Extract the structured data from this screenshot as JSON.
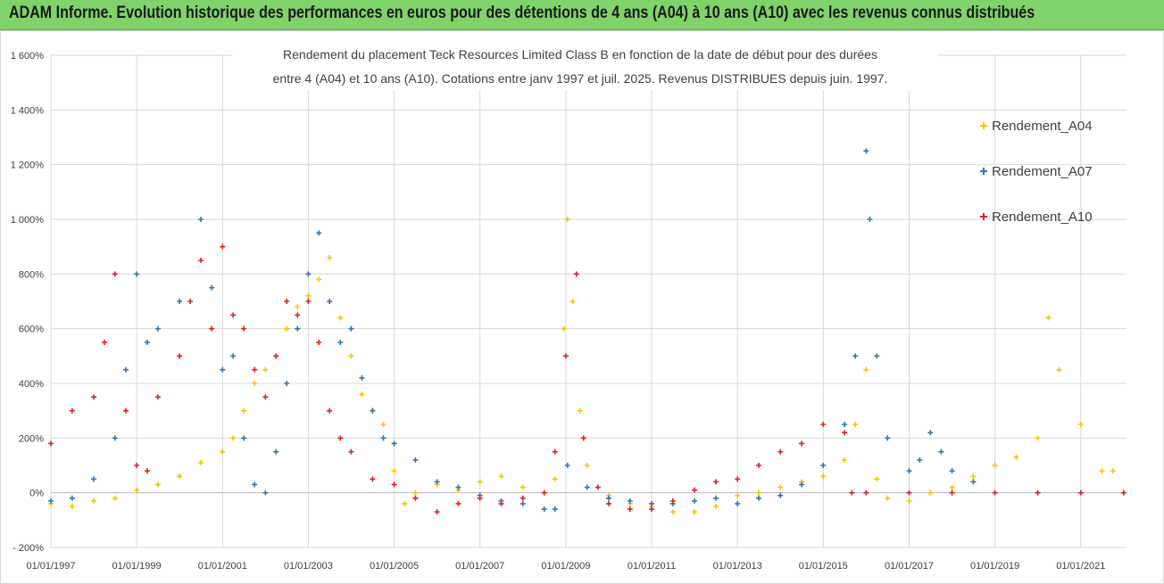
{
  "banner": {
    "title": "ADAM Informe. Evolution historique des performances en euros pour des détentions de 4 ans (A04) à 10 ans (A10) avec les revenus connus distribués",
    "background": "#7fd36a"
  },
  "chart_data": {
    "type": "scatter",
    "title_line1": "Rendement du placement Teck Resources Limited Class B en fonction de la date de début pour des durées",
    "title_line2": "entre 4 (A04) et 10 ans (A10).  Cotations entre janv 1997 et juil. 2025. Revenus DISTRIBUES depuis juin. 1997.",
    "xlabel": "",
    "ylabel": "",
    "x_range": [
      "1997-01-01",
      "2022-01-25"
    ],
    "ylim": [
      -200,
      1600
    ],
    "y_unit": "%",
    "y_ticks": [
      "- 200%",
      "0%",
      "200%",
      "400%",
      "600%",
      "800%",
      "1 000%",
      "1 200%",
      "1 400%",
      "1 600%"
    ],
    "x_ticks": [
      "01/01/1997",
      "01/01/1999",
      "01/01/2001",
      "01/01/2003",
      "01/01/2005",
      "01/01/2007",
      "01/01/2009",
      "01/01/2011",
      "01/01/2013",
      "01/01/2015",
      "01/01/2017",
      "01/01/2019",
      "01/01/2021"
    ],
    "grid": "horizontal and vertical",
    "marker": "plus",
    "legend_position": "right",
    "series": [
      {
        "name": "Rendement_A04",
        "color": "#ffc000",
        "points": [
          [
            "1997-01-01",
            -40
          ],
          [
            "1997-07-01",
            -50
          ],
          [
            "1998-01-01",
            -30
          ],
          [
            "1998-07-01",
            -20
          ],
          [
            "1999-01-01",
            10
          ],
          [
            "1999-07-01",
            30
          ],
          [
            "2000-01-01",
            60
          ],
          [
            "2000-07-01",
            110
          ],
          [
            "2001-01-01",
            150
          ],
          [
            "2001-04-01",
            200
          ],
          [
            "2001-07-01",
            300
          ],
          [
            "2001-10-01",
            400
          ],
          [
            "2002-01-01",
            450
          ],
          [
            "2002-04-01",
            500
          ],
          [
            "2002-07-01",
            600
          ],
          [
            "2002-10-01",
            680
          ],
          [
            "2003-01-01",
            720
          ],
          [
            "2003-04-01",
            780
          ],
          [
            "2003-07-01",
            860
          ],
          [
            "2003-10-01",
            640
          ],
          [
            "2004-01-01",
            500
          ],
          [
            "2004-04-01",
            360
          ],
          [
            "2004-07-01",
            300
          ],
          [
            "2004-10-01",
            250
          ],
          [
            "2005-01-01",
            80
          ],
          [
            "2005-04-01",
            -40
          ],
          [
            "2005-07-01",
            0
          ],
          [
            "2006-01-01",
            30
          ],
          [
            "2006-07-01",
            10
          ],
          [
            "2007-01-01",
            40
          ],
          [
            "2007-07-01",
            60
          ],
          [
            "2008-01-01",
            20
          ],
          [
            "2008-07-01",
            0
          ],
          [
            "2008-10-01",
            50
          ],
          [
            "2008-12-15",
            600
          ],
          [
            "2009-01-15",
            1000
          ],
          [
            "2009-03-01",
            700
          ],
          [
            "2009-05-01",
            300
          ],
          [
            "2009-07-01",
            100
          ],
          [
            "2010-01-01",
            -10
          ],
          [
            "2010-07-01",
            -40
          ],
          [
            "2011-01-01",
            -50
          ],
          [
            "2011-07-01",
            -70
          ],
          [
            "2012-01-01",
            -70
          ],
          [
            "2012-07-01",
            -50
          ],
          [
            "2013-01-01",
            -10
          ],
          [
            "2013-07-01",
            0
          ],
          [
            "2014-01-01",
            20
          ],
          [
            "2014-07-01",
            40
          ],
          [
            "2015-01-01",
            60
          ],
          [
            "2015-07-01",
            120
          ],
          [
            "2015-10-01",
            250
          ],
          [
            "2016-01-01",
            450
          ],
          [
            "2016-04-01",
            50
          ],
          [
            "2016-07-01",
            -20
          ],
          [
            "2017-01-01",
            -30
          ],
          [
            "2017-07-01",
            0
          ],
          [
            "2018-01-01",
            20
          ],
          [
            "2018-07-01",
            60
          ],
          [
            "2019-01-01",
            100
          ],
          [
            "2019-07-01",
            130
          ],
          [
            "2020-01-01",
            200
          ],
          [
            "2020-04-01",
            640
          ],
          [
            "2020-07-01",
            450
          ],
          [
            "2021-01-01",
            250
          ],
          [
            "2021-07-01",
            80
          ],
          [
            "2021-10-01",
            80
          ]
        ]
      },
      {
        "name": "Rendement_A07",
        "color": "#2e75b6",
        "points": [
          [
            "1997-01-01",
            -30
          ],
          [
            "1997-07-01",
            -20
          ],
          [
            "1998-01-01",
            50
          ],
          [
            "1998-07-01",
            200
          ],
          [
            "1998-10-01",
            450
          ],
          [
            "1999-01-01",
            800
          ],
          [
            "1999-04-01",
            550
          ],
          [
            "1999-07-01",
            600
          ],
          [
            "2000-01-01",
            700
          ],
          [
            "2000-07-01",
            1000
          ],
          [
            "2000-10-01",
            750
          ],
          [
            "2001-01-01",
            450
          ],
          [
            "2001-04-01",
            500
          ],
          [
            "2001-07-01",
            200
          ],
          [
            "2001-10-01",
            30
          ],
          [
            "2002-01-01",
            0
          ],
          [
            "2002-04-01",
            150
          ],
          [
            "2002-07-01",
            400
          ],
          [
            "2002-10-01",
            600
          ],
          [
            "2003-01-01",
            800
          ],
          [
            "2003-04-01",
            950
          ],
          [
            "2003-07-01",
            700
          ],
          [
            "2003-10-01",
            550
          ],
          [
            "2004-01-01",
            600
          ],
          [
            "2004-04-01",
            420
          ],
          [
            "2004-07-01",
            300
          ],
          [
            "2004-10-01",
            200
          ],
          [
            "2005-01-01",
            180
          ],
          [
            "2005-07-01",
            120
          ],
          [
            "2006-01-01",
            40
          ],
          [
            "2006-07-01",
            20
          ],
          [
            "2007-01-01",
            -10
          ],
          [
            "2007-07-01",
            -30
          ],
          [
            "2008-01-01",
            -40
          ],
          [
            "2008-07-01",
            -60
          ],
          [
            "2008-10-01",
            -60
          ],
          [
            "2009-01-15",
            100
          ],
          [
            "2009-07-01",
            20
          ],
          [
            "2010-01-01",
            -20
          ],
          [
            "2010-07-01",
            -30
          ],
          [
            "2011-01-01",
            -40
          ],
          [
            "2011-07-01",
            -40
          ],
          [
            "2012-01-01",
            -30
          ],
          [
            "2012-07-01",
            -20
          ],
          [
            "2013-01-01",
            -40
          ],
          [
            "2013-07-01",
            -20
          ],
          [
            "2014-01-01",
            -10
          ],
          [
            "2014-07-01",
            30
          ],
          [
            "2015-01-01",
            100
          ],
          [
            "2015-07-01",
            250
          ],
          [
            "2015-10-01",
            500
          ],
          [
            "2016-01-01",
            1250
          ],
          [
            "2016-02-01",
            1000
          ],
          [
            "2016-04-01",
            500
          ],
          [
            "2016-07-01",
            200
          ],
          [
            "2017-01-01",
            80
          ],
          [
            "2017-04-01",
            120
          ],
          [
            "2017-07-01",
            220
          ],
          [
            "2017-10-01",
            150
          ],
          [
            "2018-01-01",
            80
          ],
          [
            "2018-07-01",
            40
          ]
        ]
      },
      {
        "name": "Rendement_A10",
        "color": "#e02020",
        "points": [
          [
            "1997-01-01",
            180
          ],
          [
            "1997-07-01",
            300
          ],
          [
            "1998-01-01",
            350
          ],
          [
            "1998-04-01",
            550
          ],
          [
            "1998-07-01",
            800
          ],
          [
            "1998-10-01",
            300
          ],
          [
            "1999-01-01",
            100
          ],
          [
            "1999-04-01",
            80
          ],
          [
            "1999-07-01",
            350
          ],
          [
            "2000-01-01",
            500
          ],
          [
            "2000-04-01",
            700
          ],
          [
            "2000-07-01",
            850
          ],
          [
            "2000-10-01",
            600
          ],
          [
            "2001-01-01",
            900
          ],
          [
            "2001-04-01",
            650
          ],
          [
            "2001-07-01",
            600
          ],
          [
            "2001-10-01",
            450
          ],
          [
            "2002-01-01",
            350
          ],
          [
            "2002-04-01",
            500
          ],
          [
            "2002-07-01",
            700
          ],
          [
            "2002-10-01",
            650
          ],
          [
            "2003-01-01",
            700
          ],
          [
            "2003-04-01",
            550
          ],
          [
            "2003-07-01",
            300
          ],
          [
            "2003-10-01",
            200
          ],
          [
            "2004-01-01",
            150
          ],
          [
            "2004-07-01",
            50
          ],
          [
            "2005-01-01",
            30
          ],
          [
            "2005-07-01",
            -20
          ],
          [
            "2006-01-01",
            -70
          ],
          [
            "2006-07-01",
            -40
          ],
          [
            "2007-01-01",
            -20
          ],
          [
            "2007-07-01",
            -40
          ],
          [
            "2008-01-01",
            -20
          ],
          [
            "2008-07-01",
            0
          ],
          [
            "2008-10-01",
            150
          ],
          [
            "2009-01-01",
            500
          ],
          [
            "2009-04-01",
            800
          ],
          [
            "2009-06-01",
            200
          ],
          [
            "2009-10-01",
            20
          ],
          [
            "2010-01-01",
            -40
          ],
          [
            "2010-07-01",
            -60
          ],
          [
            "2011-01-01",
            -60
          ],
          [
            "2011-07-01",
            -30
          ],
          [
            "2012-01-01",
            10
          ],
          [
            "2012-07-01",
            40
          ],
          [
            "2013-01-01",
            50
          ],
          [
            "2013-07-01",
            100
          ],
          [
            "2014-01-01",
            150
          ],
          [
            "2014-07-01",
            180
          ],
          [
            "2015-01-01",
            250
          ],
          [
            "2015-07-01",
            220
          ],
          [
            "2015-09-01",
            0
          ],
          [
            "2016-01-01",
            0
          ],
          [
            "2017-01-01",
            0
          ],
          [
            "2018-01-01",
            0
          ],
          [
            "2019-01-01",
            0
          ],
          [
            "2020-01-01",
            0
          ],
          [
            "2021-01-01",
            0
          ],
          [
            "2022-01-01",
            0
          ]
        ]
      }
    ]
  }
}
